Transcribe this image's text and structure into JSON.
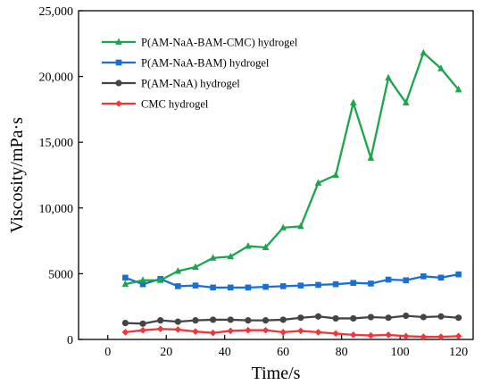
{
  "chart_data": {
    "type": "line",
    "title": "",
    "xlabel": "Time/s",
    "ylabel": "Viscosity/mPa·s",
    "xlim": [
      -10,
      125
    ],
    "ylim": [
      0,
      25000
    ],
    "xticks": [
      0,
      20,
      40,
      60,
      80,
      100,
      120
    ],
    "xtick_labels": [
      "0",
      "20",
      "40",
      "60",
      "80",
      "100",
      "120"
    ],
    "yticks": [
      0,
      5000,
      10000,
      15000,
      20000,
      25000
    ],
    "ytick_labels": [
      "0",
      "5000",
      "10,000",
      "15,000",
      "20,000",
      "25,000"
    ],
    "grid": false,
    "legend_position": "top-left",
    "x": [
      6,
      12,
      18,
      24,
      30,
      36,
      42,
      48,
      54,
      60,
      66,
      72,
      78,
      84,
      90,
      96,
      102,
      108,
      114,
      120
    ],
    "series": [
      {
        "name": "P(AM-NaA-BAM-CMC) hydrogel",
        "color": "#1aa64a",
        "marker": "triangle",
        "values": [
          4200,
          4500,
          4500,
          5200,
          5500,
          6200,
          6300,
          7100,
          7000,
          8500,
          8600,
          11900,
          12500,
          18000,
          13800,
          19900,
          18000,
          21800,
          20600,
          19000
        ]
      },
      {
        "name": "P(AM-NaA-BAM) hydrogel",
        "color": "#1a6fd6",
        "marker": "square",
        "values": [
          4700,
          4200,
          4600,
          4050,
          4100,
          3950,
          3950,
          3950,
          4000,
          4050,
          4100,
          4150,
          4200,
          4300,
          4250,
          4550,
          4500,
          4800,
          4700,
          4950
        ]
      },
      {
        "name": "P(AM-NaA) hydrogel",
        "color": "#444444",
        "marker": "circle",
        "values": [
          1250,
          1200,
          1450,
          1350,
          1450,
          1500,
          1500,
          1450,
          1450,
          1500,
          1650,
          1750,
          1600,
          1600,
          1700,
          1650,
          1800,
          1700,
          1750,
          1650
        ]
      },
      {
        "name": "CMC hydrogel",
        "color": "#f0353b",
        "marker": "diamond",
        "values": [
          550,
          700,
          800,
          750,
          600,
          500,
          650,
          700,
          700,
          550,
          650,
          550,
          450,
          350,
          300,
          350,
          250,
          200,
          200,
          250
        ]
      }
    ]
  }
}
